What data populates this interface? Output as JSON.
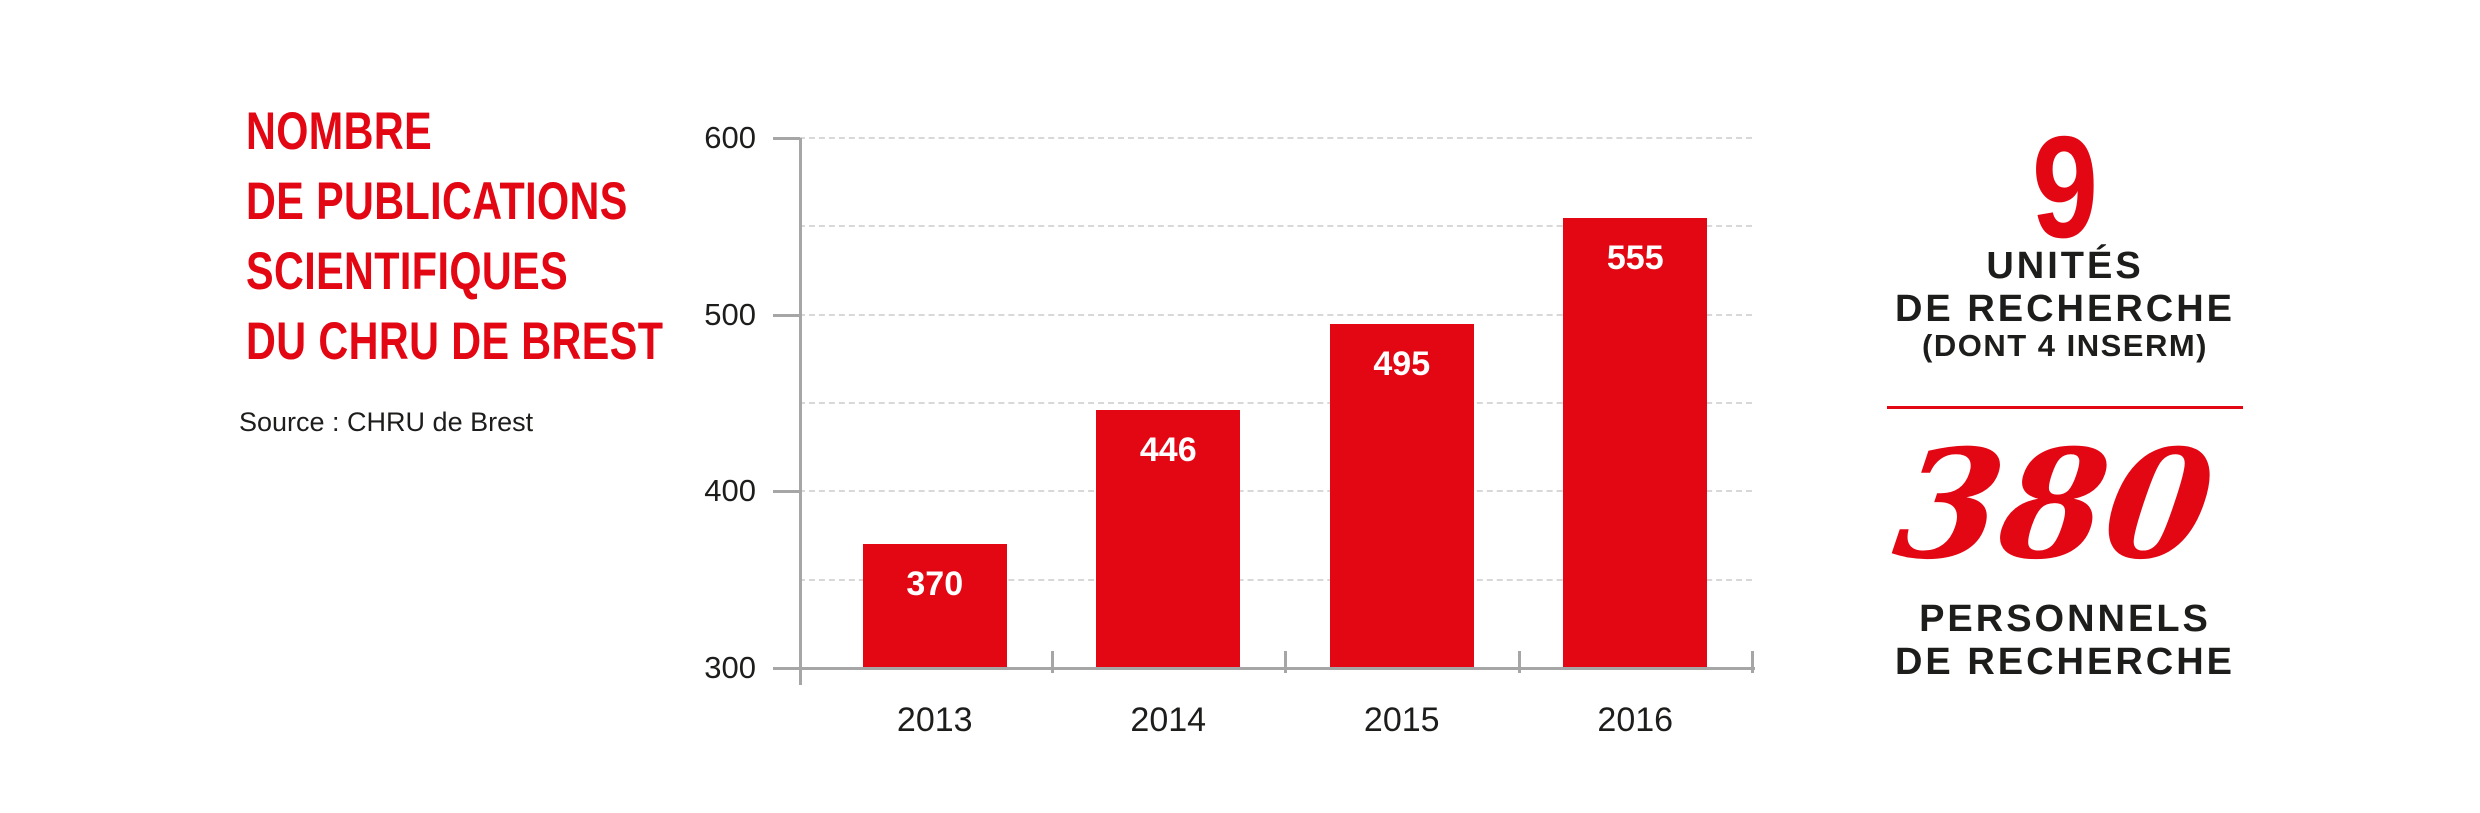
{
  "accent_red": "#e30613",
  "title": {
    "lines": [
      "NOMBRE",
      "DE PUBLICATIONS",
      "SCIENTIFIQUES",
      "DU CHRU DE BREST"
    ]
  },
  "source": "Source : CHRU de Brest",
  "chart_data": {
    "type": "bar",
    "title": "Nombre de publications scientifiques du CHRU de Brest",
    "categories": [
      "2013",
      "2014",
      "2015",
      "2016"
    ],
    "values": [
      370,
      446,
      495,
      555
    ],
    "value_labels": [
      "370",
      "446",
      "495",
      "555"
    ],
    "value_label_position": "inside-top",
    "value_label_color": "#ffffff",
    "bar_color": "#e30613",
    "xlabel": "",
    "ylabel": "",
    "ylim": [
      300,
      600
    ],
    "y_labeled_ticks": [
      300,
      400,
      500,
      600
    ],
    "gridline_step": 50,
    "grid": "horizontal-dashed",
    "legend": "none",
    "axis_color": "#a6a6a6",
    "gridline_color": "#d8d8d8",
    "tick_label_color": "#1d1d1b"
  },
  "stats_panel": {
    "stat1": {
      "number": "9",
      "label_lines": [
        "UNITÉS",
        "DE RECHERCHE"
      ],
      "sublabel": "(DONT 4 INSERM)"
    },
    "stat2": {
      "number": "380",
      "label_lines": [
        "PERSONNELS",
        "DE RECHERCHE"
      ]
    }
  }
}
